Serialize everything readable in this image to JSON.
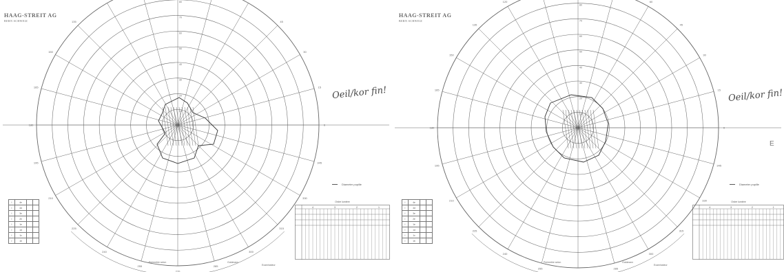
{
  "sheets": [
    {
      "side": "left",
      "logo_title": "HAAG-STREIT AG",
      "logo_sub": "BERN SCHWEIZ",
      "handnote": "Oeil/kor fin!",
      "legend": "Diameter pupille",
      "side_mark": "",
      "meridians": [
        "0",
        "15",
        "30",
        "45",
        "60",
        "75",
        "90",
        "105",
        "120",
        "135",
        "150",
        "165",
        "180",
        "195",
        "210",
        "225",
        "240",
        "255",
        "270",
        "285",
        "300",
        "315",
        "330",
        "345"
      ],
      "rings": [
        "10",
        "20",
        "30",
        "40",
        "50",
        "60",
        "70",
        "80",
        "90"
      ],
      "iso_rows": [
        [
          "I",
          "4e",
          "",
          ""
        ],
        [
          "I",
          "4d",
          "",
          ""
        ],
        [
          "I",
          "3e",
          "",
          ""
        ],
        [
          "I",
          "2e",
          "",
          ""
        ],
        [
          "I",
          "1e",
          "",
          ""
        ],
        [
          "I",
          "1d",
          "",
          ""
        ],
        [
          "I",
          "1c",
          "",
          ""
        ],
        [
          "I",
          "1b",
          "",
          ""
        ]
      ],
      "box_title": "Ordre lumière",
      "box_cols": [
        "4",
        "3",
        "2",
        "1"
      ],
      "foot_left": "Perimetrie selon",
      "foot_right": "Goldmann",
      "foot_mid": "Examinateur"
    },
    {
      "side": "right",
      "logo_title": "HAAG-STREIT AG",
      "logo_sub": "BERN SCHWEIZ",
      "handnote": "Oeil/kor fin!",
      "legend": "Diameter pupille",
      "side_mark": "E",
      "meridians": [
        "0",
        "15",
        "30",
        "45",
        "60",
        "75",
        "90",
        "105",
        "120",
        "135",
        "150",
        "165",
        "180",
        "195",
        "210",
        "225",
        "240",
        "255",
        "270",
        "285",
        "300",
        "315",
        "330",
        "345"
      ],
      "rings": [
        "10",
        "20",
        "30",
        "40",
        "50",
        "60",
        "70",
        "80",
        "90"
      ],
      "iso_rows": [
        [
          "I",
          "4e",
          "",
          ""
        ],
        [
          "I",
          "4d",
          "",
          ""
        ],
        [
          "I",
          "3e",
          "",
          ""
        ],
        [
          "I",
          "2e",
          "",
          ""
        ],
        [
          "I",
          "1e",
          "",
          ""
        ],
        [
          "I",
          "1d",
          "",
          ""
        ],
        [
          "I",
          "1c",
          "",
          ""
        ],
        [
          "I",
          "1b",
          "",
          ""
        ]
      ],
      "box_title": "Ordre lumière",
      "box_cols": [
        "4",
        "3",
        "2",
        "1"
      ],
      "foot_left": "Perimetrie selon",
      "foot_right": "Goldmann",
      "foot_mid": "Examinateur"
    }
  ],
  "colors": {
    "ink": "#666666",
    "plot": "#333333",
    "paper": "#ffffff"
  }
}
